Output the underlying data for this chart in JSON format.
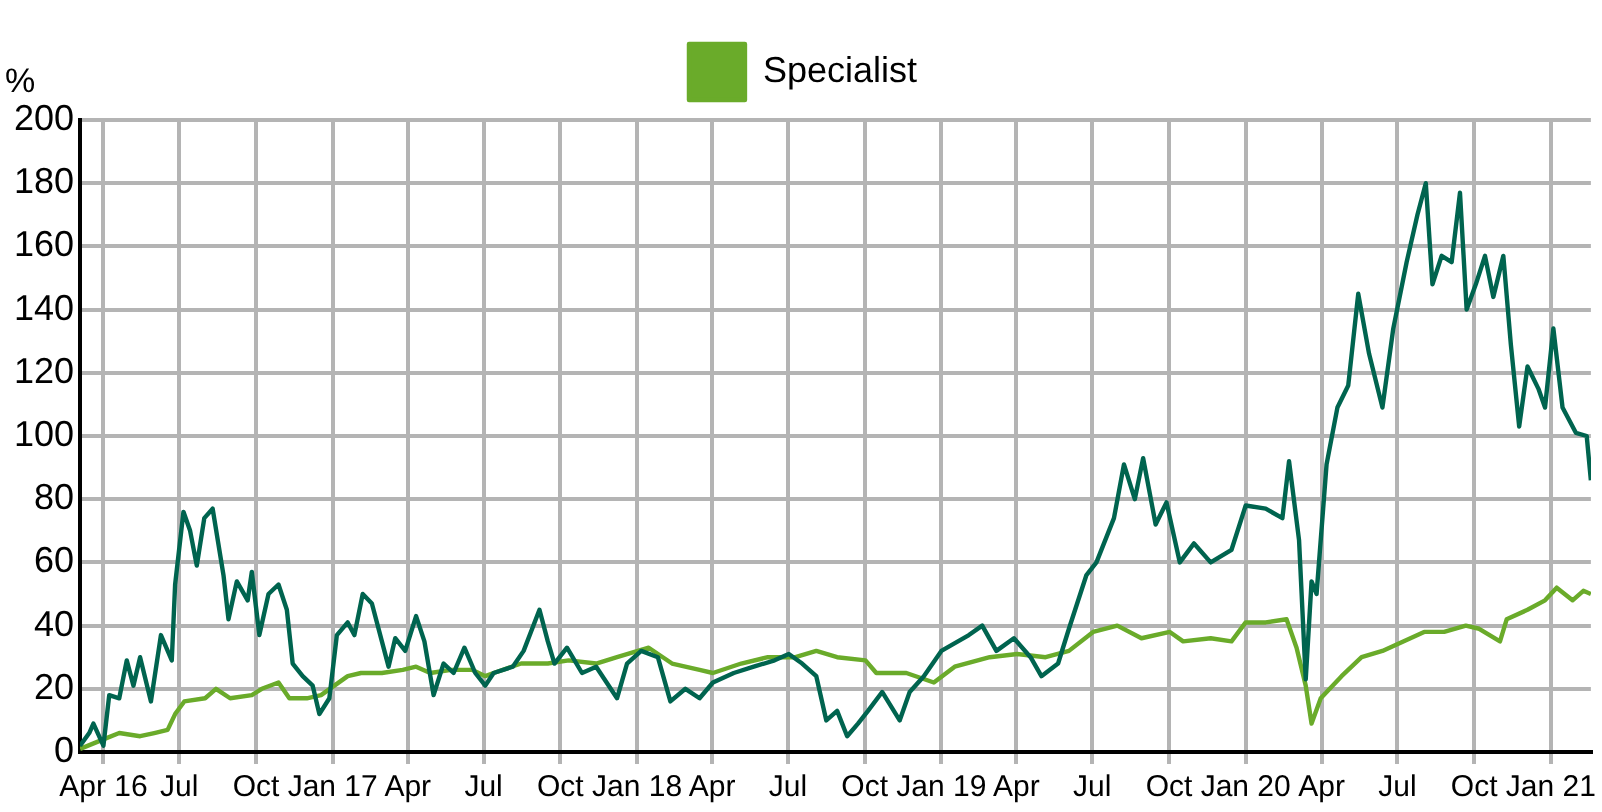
{
  "chart_data": {
    "type": "line",
    "ylabel": "%",
    "legend": "top",
    "grid": true,
    "marker": "none",
    "line_style": "solid",
    "xlim": [
      "2016-03-04",
      "2021-02-18"
    ],
    "xticks": [
      {
        "value": "2016-04-01",
        "label": "Apr 16"
      },
      {
        "value": "2016-07-01",
        "label": "Jul"
      },
      {
        "value": "2016-10-01",
        "label": "Oct"
      },
      {
        "value": "2017-01-01",
        "label": "Jan 17"
      },
      {
        "value": "2017-04-01",
        "label": "Apr"
      },
      {
        "value": "2017-07-01",
        "label": "Jul"
      },
      {
        "value": "2017-10-01",
        "label": "Oct"
      },
      {
        "value": "2018-01-01",
        "label": "Jan 18"
      },
      {
        "value": "2018-04-01",
        "label": "Apr"
      },
      {
        "value": "2018-07-01",
        "label": "Jul"
      },
      {
        "value": "2018-10-01",
        "label": "Oct"
      },
      {
        "value": "2019-01-01",
        "label": "Jan 19"
      },
      {
        "value": "2019-04-01",
        "label": "Apr"
      },
      {
        "value": "2019-07-01",
        "label": "Jul"
      },
      {
        "value": "2019-10-01",
        "label": "Oct"
      },
      {
        "value": "2020-01-01",
        "label": "Jan 20"
      },
      {
        "value": "2020-04-01",
        "label": "Apr"
      },
      {
        "value": "2020-07-01",
        "label": "Jul"
      },
      {
        "value": "2020-10-01",
        "label": "Oct"
      },
      {
        "value": "2021-01-01",
        "label": "Jan 21"
      }
    ],
    "ylim": [
      0,
      200
    ],
    "yticks": [
      0,
      20,
      40,
      60,
      80,
      100,
      120,
      140,
      160,
      180,
      200
    ],
    "series": [
      {
        "color": "#00644f",
        "x": [
          "2016-03-04",
          "2016-03-15",
          "2016-03-20",
          "2016-04-01",
          "2016-04-08",
          "2016-04-20",
          "2016-04-29",
          "2016-05-07",
          "2016-05-15",
          "2016-05-28",
          "2016-06-09",
          "2016-06-22",
          "2016-06-26",
          "2016-07-06",
          "2016-07-14",
          "2016-07-22",
          "2016-07-31",
          "2016-08-10",
          "2016-08-23",
          "2016-08-29",
          "2016-09-08",
          "2016-09-21",
          "2016-09-26",
          "2016-10-05",
          "2016-10-16",
          "2016-10-28",
          "2016-11-07",
          "2016-11-14",
          "2016-11-26",
          "2016-12-08",
          "2016-12-16",
          "2016-12-28",
          "2017-01-06",
          "2017-01-19",
          "2017-01-27",
          "2017-02-06",
          "2017-02-17",
          "2017-03-01",
          "2017-03-09",
          "2017-03-17",
          "2017-03-29",
          "2017-04-11",
          "2017-04-21",
          "2017-05-02",
          "2017-05-14",
          "2017-05-26",
          "2017-06-08",
          "2017-06-21",
          "2017-07-03",
          "2017-07-13",
          "2017-08-05",
          "2017-08-18",
          "2017-09-06",
          "2017-09-16",
          "2017-09-24",
          "2017-10-09",
          "2017-10-27",
          "2017-11-13",
          "2017-12-08",
          "2017-12-20",
          "2018-01-06",
          "2018-01-26",
          "2018-02-10",
          "2018-02-28",
          "2018-03-17",
          "2018-04-02",
          "2018-04-27",
          "2018-05-21",
          "2018-06-15",
          "2018-07-02",
          "2018-07-18",
          "2018-08-04",
          "2018-08-16",
          "2018-08-29",
          "2018-09-10",
          "2018-09-23",
          "2018-10-05",
          "2018-10-22",
          "2018-11-12",
          "2018-11-24",
          "2018-12-11",
          "2019-01-01",
          "2019-02-03",
          "2019-02-19",
          "2019-03-08",
          "2019-03-29",
          "2019-04-18",
          "2019-05-01",
          "2019-05-21",
          "2019-06-03",
          "2019-06-24",
          "2019-07-06",
          "2019-07-27",
          "2019-08-08",
          "2019-08-21",
          "2019-08-31",
          "2019-09-15",
          "2019-09-28",
          "2019-10-14",
          "2019-10-31",
          "2019-11-20",
          "2019-12-15",
          "2020-01-01",
          "2020-01-25",
          "2020-02-14",
          "2020-02-22",
          "2020-03-05",
          "2020-03-13",
          "2020-03-20",
          "2020-03-26",
          "2020-04-07",
          "2020-04-20",
          "2020-05-03",
          "2020-05-15",
          "2020-05-28",
          "2020-06-13",
          "2020-06-26",
          "2020-07-12",
          "2020-07-25",
          "2020-08-04",
          "2020-08-12",
          "2020-08-23",
          "2020-09-04",
          "2020-09-14",
          "2020-09-22",
          "2020-10-03",
          "2020-10-14",
          "2020-10-24",
          "2020-11-05",
          "2020-11-14",
          "2020-11-24",
          "2020-12-04",
          "2020-12-17",
          "2020-12-25",
          "2021-01-04",
          "2021-01-15",
          "2021-01-31",
          "2021-02-13",
          "2021-02-18"
        ],
        "values": [
          2,
          6,
          9,
          2,
          18,
          17,
          29,
          21,
          30,
          16,
          37,
          29,
          53,
          76,
          70,
          59,
          74,
          77,
          56,
          42,
          54,
          48,
          57,
          37,
          50,
          53,
          45,
          28,
          24,
          21,
          12,
          17,
          37,
          41,
          37,
          50,
          47,
          35,
          27,
          36,
          32,
          43,
          35,
          18,
          28,
          25,
          33,
          25,
          21,
          25,
          27,
          32,
          45,
          35,
          28,
          33,
          25,
          27,
          17,
          28,
          32,
          30,
          16,
          20,
          17,
          22,
          25,
          27,
          29,
          31,
          28,
          24,
          10,
          13,
          5,
          9,
          13,
          19,
          10,
          19,
          24,
          32,
          37,
          40,
          32,
          36,
          30,
          24,
          28,
          39,
          56,
          60,
          74,
          91,
          80,
          93,
          72,
          79,
          60,
          66,
          60,
          64,
          78,
          77,
          74,
          92,
          67,
          23,
          54,
          50,
          91,
          109,
          116,
          145,
          126,
          109,
          134,
          155,
          170,
          180,
          148,
          157,
          155,
          177,
          140,
          148,
          157,
          144,
          157,
          129,
          103,
          122,
          115,
          109,
          134,
          109,
          101,
          100,
          86
        ]
      },
      {
        "name": "Specialist",
        "color": "#6aab2a",
        "x": [
          "2016-03-04",
          "2016-04-01",
          "2016-04-20",
          "2016-05-15",
          "2016-06-01",
          "2016-06-17",
          "2016-06-26",
          "2016-07-07",
          "2016-08-01",
          "2016-08-14",
          "2016-08-31",
          "2016-09-26",
          "2016-10-08",
          "2016-10-28",
          "2016-11-10",
          "2016-12-01",
          "2016-12-18",
          "2017-01-03",
          "2017-01-19",
          "2017-02-04",
          "2017-03-01",
          "2017-03-26",
          "2017-04-11",
          "2017-04-28",
          "2017-05-23",
          "2017-06-17",
          "2017-07-03",
          "2017-07-13",
          "2017-08-15",
          "2017-09-16",
          "2017-10-11",
          "2017-11-13",
          "2017-12-08",
          "2018-01-15",
          "2018-02-12",
          "2018-03-17",
          "2018-04-02",
          "2018-05-06",
          "2018-06-07",
          "2018-07-10",
          "2018-08-04",
          "2018-08-29",
          "2018-10-02",
          "2018-10-15",
          "2018-11-20",
          "2018-12-23",
          "2019-01-17",
          "2019-02-28",
          "2019-04-02",
          "2019-05-06",
          "2019-06-03",
          "2019-07-02",
          "2019-07-31",
          "2019-08-29",
          "2019-10-02",
          "2019-10-18",
          "2019-11-20",
          "2019-12-15",
          "2020-01-01",
          "2020-01-25",
          "2020-02-19",
          "2020-03-02",
          "2020-03-13",
          "2020-03-20",
          "2020-03-31",
          "2020-04-25",
          "2020-05-19",
          "2020-06-13",
          "2020-07-08",
          "2020-08-02",
          "2020-08-26",
          "2020-09-21",
          "2020-10-07",
          "2020-11-01",
          "2020-11-09",
          "2020-12-04",
          "2020-12-25",
          "2021-01-08",
          "2021-01-27",
          "2021-02-09",
          "2021-02-18"
        ],
        "values": [
          1,
          4,
          6,
          5,
          6,
          7,
          12,
          16,
          17,
          20,
          17,
          18,
          20,
          22,
          17,
          17,
          18,
          21,
          24,
          25,
          25,
          26,
          27,
          25,
          26,
          26,
          24,
          25,
          28,
          28,
          29,
          28,
          30,
          33,
          28,
          26,
          25,
          28,
          30,
          30,
          32,
          30,
          29,
          25,
          25,
          22,
          27,
          30,
          31,
          30,
          32,
          38,
          40,
          36,
          38,
          35,
          36,
          35,
          41,
          41,
          42,
          33,
          21,
          9,
          17,
          24,
          30,
          32,
          35,
          38,
          38,
          40,
          39,
          35,
          42,
          45,
          48,
          52,
          48,
          51,
          50
        ]
      }
    ]
  }
}
